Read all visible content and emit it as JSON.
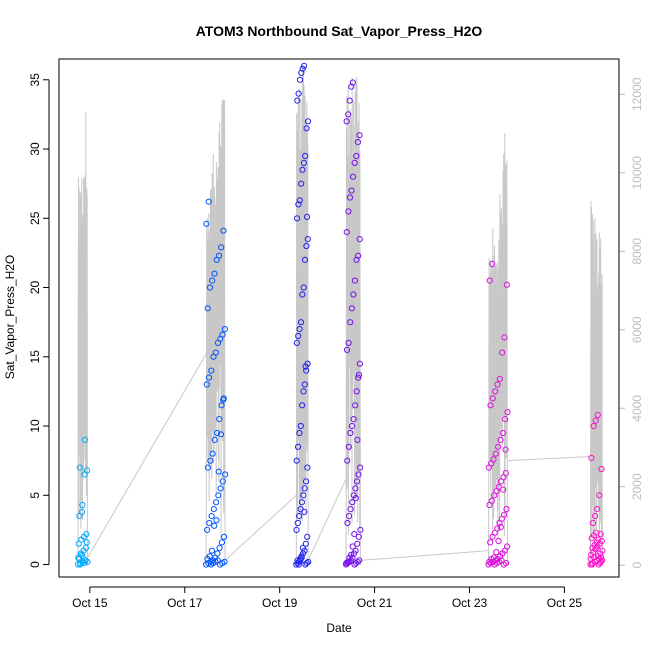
{
  "chart_data": {
    "type": "scatter",
    "title": "ATOM3 Northbound Sat_Vapor_Press_H2O",
    "xlabel": "Date",
    "ylabel": "Sat_Vapor_Press_H2O",
    "xlim": [
      14.35,
      26.15
    ],
    "ylim": [
      -0.9,
      36.5
    ],
    "y2lim": [
      -300,
      12900
    ],
    "x_ticks": [
      {
        "value": 15,
        "label": "Oct 15"
      },
      {
        "value": 17,
        "label": "Oct 17"
      },
      {
        "value": 19,
        "label": "Oct 19"
      },
      {
        "value": 21,
        "label": "Oct 21"
      },
      {
        "value": 23,
        "label": "Oct 23"
      },
      {
        "value": 25,
        "label": "Oct 25"
      }
    ],
    "y_ticks": [
      0,
      5,
      10,
      15,
      20,
      25,
      30,
      35
    ],
    "y2_ticks": [
      0,
      2000,
      4000,
      6000,
      8000,
      10000,
      12000
    ],
    "colors": {
      "flight1": "#00aaff",
      "flight2": "#0055ff",
      "flight3": "#2222ee",
      "flight4": "#7711ee",
      "flight5": "#dd11dd",
      "flight6": "#ff11cc",
      "altitude": "#c8c8c8"
    },
    "flights": [
      {
        "x_range": [
          14.75,
          14.95
        ],
        "altitude_peaks": [
          9900,
          10200,
          11700
        ],
        "values": [
          0.0,
          0.1,
          0.2,
          0.3,
          0.5,
          0.8,
          1.0,
          1.2,
          1.5,
          1.8,
          2.0,
          2.2,
          0.4,
          0.7,
          0.1,
          1.6,
          3.5,
          3.8,
          6.5,
          6.8,
          7.0,
          4.3,
          9.0,
          0.2,
          0.0,
          0.6,
          0.3
        ]
      },
      {
        "x_range": [
          17.45,
          17.85
        ],
        "altitude_peaks": [
          9800,
          10500,
          11900,
          12900
        ],
        "values": [
          0.0,
          0.1,
          0.2,
          0.3,
          0.5,
          0.8,
          1.2,
          1.6,
          2.0,
          2.5,
          3.0,
          3.5,
          4.0,
          4.5,
          5.0,
          5.5,
          6.0,
          6.5,
          7.0,
          7.5,
          8.0,
          9.0,
          9.5,
          10.5,
          11.5,
          12.0,
          13.0,
          13.5,
          14.0,
          15.0,
          15.3,
          16.0,
          16.3,
          16.6,
          17.0,
          18.5,
          20.0,
          20.5,
          21.0,
          22.0,
          22.3,
          22.9,
          24.1,
          24.6,
          26.2,
          0.0,
          0.1,
          0.2,
          0.3,
          0.0,
          0.1,
          0.2,
          0.4,
          0.6,
          1.0,
          2.8,
          3.2,
          6.7,
          9.4,
          11.9
        ]
      },
      {
        "x_range": [
          19.35,
          19.6
        ],
        "altitude_peaks": [
          12500,
          12800,
          13000
        ],
        "values": [
          0.0,
          0.1,
          0.2,
          0.3,
          0.5,
          0.8,
          1.0,
          1.5,
          2.0,
          2.5,
          3.0,
          3.5,
          4.0,
          4.5,
          5.0,
          5.5,
          6.0,
          7.0,
          7.5,
          8.5,
          9.5,
          10.0,
          11.5,
          12.5,
          13.0,
          14.0,
          14.5,
          16.0,
          16.5,
          17.0,
          17.5,
          19.5,
          20.0,
          22.0,
          23.0,
          23.5,
          25.0,
          26.0,
          26.3,
          27.5,
          28.5,
          29.0,
          29.5,
          31.5,
          32.0,
          33.5,
          34.0,
          35.0,
          35.5,
          35.8,
          36.0,
          0.0,
          0.1,
          0.2,
          0.3,
          0.0,
          0.4,
          0.6,
          1.2,
          3.8,
          14.3,
          25.1
        ]
      },
      {
        "x_range": [
          20.4,
          20.7
        ],
        "altitude_peaks": [
          12300,
          12700,
          13000
        ],
        "values": [
          0.0,
          0.1,
          0.2,
          0.3,
          0.5,
          0.8,
          1.0,
          1.5,
          2.0,
          2.5,
          3.0,
          3.5,
          4.0,
          4.5,
          5.0,
          5.5,
          6.0,
          6.5,
          7.0,
          7.5,
          8.5,
          9.5,
          10.0,
          10.5,
          11.5,
          12.5,
          13.5,
          14.5,
          15.5,
          16.0,
          17.5,
          18.5,
          19.5,
          20.5,
          22.0,
          22.3,
          23.5,
          24.0,
          25.5,
          26.5,
          27.0,
          28.0,
          29.0,
          29.5,
          30.5,
          31.0,
          32.0,
          32.5,
          33.5,
          34.5,
          34.8,
          0.0,
          0.1,
          0.2,
          0.3,
          0.1,
          0.2,
          0.5,
          0.7,
          1.3,
          2.2,
          4.8,
          9.0,
          13.7
        ]
      },
      {
        "x_range": [
          23.4,
          23.8
        ],
        "altitude_peaks": [
          8600,
          8300,
          9500,
          12000
        ],
        "values": [
          0.0,
          0.1,
          0.2,
          0.3,
          0.4,
          0.6,
          0.8,
          1.0,
          1.3,
          1.6,
          2.0,
          2.3,
          2.6,
          3.0,
          3.3,
          3.6,
          4.0,
          4.3,
          4.6,
          5.0,
          5.3,
          5.6,
          6.0,
          6.3,
          6.6,
          7.0,
          7.3,
          7.6,
          8.0,
          8.5,
          9.0,
          9.5,
          10.5,
          11.0,
          11.5,
          12.0,
          12.5,
          13.0,
          13.4,
          15.3,
          16.4,
          20.2,
          20.5,
          21.7,
          0.0,
          0.1,
          0.2,
          0.3,
          0.0,
          0.1,
          0.2,
          0.4,
          0.5,
          0.9,
          1.7,
          2.7,
          5.4,
          8.3
        ]
      },
      {
        "x_range": [
          25.55,
          25.8
        ],
        "altitude_peaks": [
          9800,
          9200,
          8700,
          8500
        ],
        "values": [
          0.0,
          0.1,
          0.2,
          0.3,
          0.4,
          0.5,
          0.7,
          0.9,
          1.1,
          1.3,
          1.5,
          1.7,
          1.9,
          2.1,
          2.3,
          0.6,
          0.8,
          1.0,
          1.2,
          1.4,
          1.6,
          0.0,
          0.2,
          0.4,
          3.0,
          3.5,
          4.0,
          5.0,
          6.9,
          7.7,
          10.0,
          10.4,
          10.8,
          0.1,
          0.3,
          0.0,
          0.5,
          1.2,
          1.8,
          2.2
        ]
      }
    ],
    "connectors": [
      {
        "from": [
          14.92,
          0.3
        ],
        "to": [
          17.45,
          15.2
        ]
      },
      {
        "from": [
          17.85,
          0.3
        ],
        "to": [
          19.35,
          5.0
        ]
      },
      {
        "from": [
          19.6,
          0.3
        ],
        "to": [
          20.4,
          6.2
        ]
      },
      {
        "from": [
          20.7,
          0.3
        ],
        "to": [
          23.4,
          1.0
        ]
      },
      {
        "from": [
          23.8,
          7.5
        ],
        "to": [
          25.55,
          7.8
        ]
      }
    ]
  }
}
